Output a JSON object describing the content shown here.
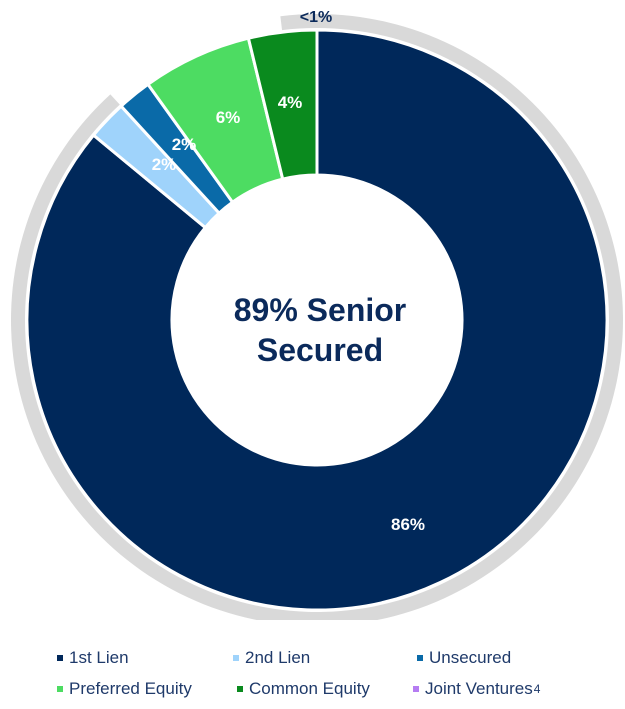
{
  "chart_data": {
    "type": "pie",
    "center_label": "89% Senior Secured",
    "center_label_lines": [
      "89% Senior",
      "Secured"
    ],
    "slices": [
      {
        "name": "1st Lien",
        "value": 86,
        "label": "86%",
        "color": "#00285a"
      },
      {
        "name": "2nd Lien",
        "value": 2.2,
        "label": "2%",
        "color": "#9fd3fb"
      },
      {
        "name": "Unsecured",
        "value": 1.9,
        "label": "2%",
        "color": "#0a6aa8"
      },
      {
        "name": "Preferred Equity",
        "value": 6.1,
        "label": "6%",
        "color": "#4ddc62"
      },
      {
        "name": "Common Equity",
        "value": 3.8,
        "label": "4%",
        "color": "#0a8a1e"
      },
      {
        "name": "Joint Ventures",
        "value": 0,
        "label": "<1%",
        "color": "#b57cf2"
      }
    ],
    "senior_secured_arc": {
      "value": 89,
      "color": "#d9d9d9"
    },
    "legend": {
      "placement": "bottom",
      "items": [
        {
          "label": "1st Lien",
          "color": "#00285a"
        },
        {
          "label": "2nd Lien",
          "color": "#9fd3fb"
        },
        {
          "label": "Unsecured",
          "color": "#0a6aa8"
        },
        {
          "label": "Preferred Equity",
          "color": "#4ddc62"
        },
        {
          "label": "Common Equity",
          "color": "#0a8a1e"
        },
        {
          "label": "Joint Ventures",
          "color": "#b57cf2",
          "superscript": "4"
        }
      ]
    }
  }
}
